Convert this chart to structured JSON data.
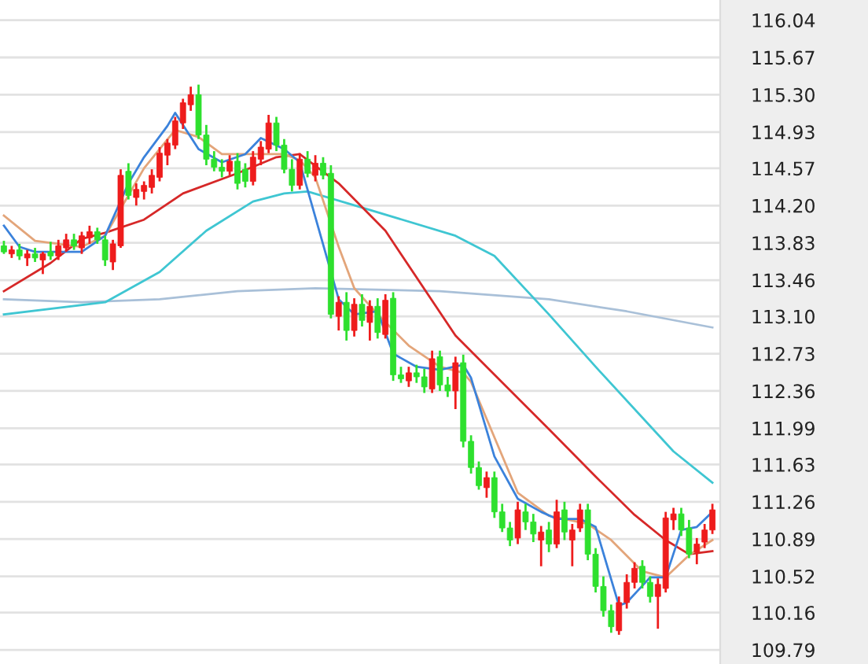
{
  "chart_data": {
    "type": "candlestick",
    "categories": [
      null,
      null,
      null,
      null,
      null,
      null,
      null,
      null,
      null,
      null,
      null,
      null,
      null,
      null,
      null,
      null,
      null,
      null,
      null,
      null,
      null,
      null,
      null,
      null,
      null,
      null,
      null,
      null,
      null,
      null,
      null,
      null,
      null,
      null,
      null,
      null,
      null,
      null,
      null,
      null,
      null,
      null,
      null,
      null,
      null,
      null,
      null,
      null,
      null,
      null,
      null,
      null,
      null,
      null,
      null,
      null,
      null,
      null,
      null,
      null,
      null,
      null,
      null,
      null,
      null,
      null,
      null,
      null,
      null,
      null,
      null,
      null,
      null,
      null,
      null,
      null,
      null,
      null,
      null,
      null,
      null,
      null,
      null,
      null,
      null,
      null,
      null,
      null,
      null,
      null,
      null,
      null
    ],
    "ohlc": [
      [
        113.8,
        113.85,
        113.72,
        113.74
      ],
      [
        113.72,
        113.8,
        113.68,
        113.76
      ],
      [
        113.76,
        113.82,
        113.66,
        113.7
      ],
      [
        113.68,
        113.76,
        113.6,
        113.72
      ],
      [
        113.72,
        113.78,
        113.64,
        113.68
      ],
      [
        113.66,
        113.74,
        113.52,
        113.72
      ],
      [
        113.74,
        113.84,
        113.66,
        113.7
      ],
      [
        113.7,
        113.86,
        113.66,
        113.8
      ],
      [
        113.78,
        113.92,
        113.74,
        113.86
      ],
      [
        113.86,
        113.92,
        113.76,
        113.8
      ],
      [
        113.78,
        113.94,
        113.72,
        113.9
      ],
      [
        113.88,
        114.0,
        113.82,
        113.94
      ],
      [
        113.94,
        113.98,
        113.82,
        113.86
      ],
      [
        113.86,
        113.9,
        113.6,
        113.66
      ],
      [
        113.64,
        113.86,
        113.56,
        113.82
      ],
      [
        113.8,
        114.56,
        113.78,
        114.5
      ],
      [
        114.54,
        114.62,
        114.26,
        114.3
      ],
      [
        114.28,
        114.42,
        114.2,
        114.36
      ],
      [
        114.34,
        114.44,
        114.26,
        114.4
      ],
      [
        114.38,
        114.56,
        114.32,
        114.5
      ],
      [
        114.48,
        114.78,
        114.44,
        114.72
      ],
      [
        114.7,
        114.86,
        114.6,
        114.82
      ],
      [
        114.8,
        115.08,
        114.76,
        115.04
      ],
      [
        115.02,
        115.26,
        114.96,
        115.22
      ],
      [
        115.2,
        115.38,
        115.14,
        115.3
      ],
      [
        115.3,
        115.4,
        114.86,
        114.9
      ],
      [
        114.9,
        115.0,
        114.6,
        114.66
      ],
      [
        114.66,
        114.74,
        114.54,
        114.58
      ],
      [
        114.58,
        114.66,
        114.48,
        114.54
      ],
      [
        114.54,
        114.7,
        114.5,
        114.64
      ],
      [
        114.64,
        114.72,
        114.36,
        114.42
      ],
      [
        114.56,
        114.62,
        114.38,
        114.44
      ],
      [
        114.44,
        114.74,
        114.4,
        114.68
      ],
      [
        114.66,
        114.84,
        114.6,
        114.78
      ],
      [
        114.76,
        115.1,
        114.72,
        115.02
      ],
      [
        115.02,
        115.08,
        114.74,
        114.8
      ],
      [
        114.8,
        114.86,
        114.52,
        114.56
      ],
      [
        114.56,
        114.66,
        114.34,
        114.4
      ],
      [
        114.4,
        114.72,
        114.36,
        114.66
      ],
      [
        114.66,
        114.74,
        114.48,
        114.52
      ],
      [
        114.5,
        114.7,
        114.44,
        114.62
      ],
      [
        114.62,
        114.68,
        114.46,
        114.5
      ],
      [
        114.52,
        114.6,
        113.08,
        113.12
      ],
      [
        113.1,
        113.3,
        112.96,
        113.24
      ],
      [
        113.24,
        113.34,
        112.86,
        112.96
      ],
      [
        112.96,
        113.28,
        112.9,
        113.22
      ],
      [
        113.22,
        113.32,
        113.0,
        113.06
      ],
      [
        113.04,
        113.26,
        112.86,
        113.2
      ],
      [
        113.2,
        113.28,
        112.88,
        112.94
      ],
      [
        112.92,
        113.32,
        112.88,
        113.26
      ],
      [
        113.28,
        113.34,
        112.46,
        112.52
      ],
      [
        112.52,
        112.6,
        112.44,
        112.48
      ],
      [
        112.46,
        112.6,
        112.4,
        112.54
      ],
      [
        112.54,
        112.62,
        112.44,
        112.5
      ],
      [
        112.5,
        112.58,
        112.34,
        112.4
      ],
      [
        112.38,
        112.76,
        112.34,
        112.68
      ],
      [
        112.7,
        112.76,
        112.36,
        112.42
      ],
      [
        112.42,
        112.5,
        112.3,
        112.36
      ],
      [
        112.36,
        112.7,
        112.18,
        112.64
      ],
      [
        112.64,
        112.72,
        111.8,
        111.86
      ],
      [
        111.86,
        111.92,
        111.54,
        111.6
      ],
      [
        111.6,
        111.66,
        111.38,
        111.42
      ],
      [
        111.4,
        111.56,
        111.3,
        111.5
      ],
      [
        111.5,
        111.56,
        111.1,
        111.16
      ],
      [
        111.16,
        111.24,
        110.96,
        111.0
      ],
      [
        111.0,
        111.06,
        110.82,
        110.88
      ],
      [
        110.9,
        111.26,
        110.84,
        111.18
      ],
      [
        111.16,
        111.24,
        110.98,
        111.06
      ],
      [
        111.06,
        111.14,
        110.86,
        110.94
      ],
      [
        110.88,
        111.02,
        110.62,
        110.96
      ],
      [
        110.98,
        111.06,
        110.76,
        110.84
      ],
      [
        110.84,
        111.28,
        110.8,
        111.16
      ],
      [
        111.18,
        111.26,
        110.88,
        110.96
      ],
      [
        110.88,
        111.04,
        110.62,
        110.98
      ],
      [
        111.0,
        111.24,
        110.96,
        111.18
      ],
      [
        111.18,
        111.24,
        110.68,
        110.74
      ],
      [
        110.74,
        110.8,
        110.36,
        110.42
      ],
      [
        110.42,
        110.52,
        110.12,
        110.18
      ],
      [
        110.18,
        110.24,
        109.96,
        110.02
      ],
      [
        109.98,
        110.32,
        109.94,
        110.26
      ],
      [
        110.26,
        110.54,
        110.2,
        110.46
      ],
      [
        110.46,
        110.66,
        110.4,
        110.6
      ],
      [
        110.62,
        110.68,
        110.4,
        110.46
      ],
      [
        110.46,
        110.52,
        110.26,
        110.32
      ],
      [
        110.32,
        110.5,
        110.0,
        110.44
      ],
      [
        110.4,
        111.16,
        110.36,
        111.1
      ],
      [
        111.08,
        111.2,
        110.98,
        111.14
      ],
      [
        111.14,
        111.2,
        110.92,
        110.98
      ],
      [
        111.0,
        111.08,
        110.7,
        110.74
      ],
      [
        110.76,
        110.9,
        110.64,
        110.84
      ],
      [
        110.86,
        111.04,
        110.8,
        110.98
      ],
      [
        110.98,
        111.24,
        110.94,
        111.18
      ]
    ],
    "series": [
      {
        "type": "line",
        "color": "#a9c0d8",
        "values": [
          113.27,
          null,
          null,
          null,
          null,
          null,
          null,
          null,
          null,
          null,
          113.24,
          null,
          null,
          null,
          null,
          null,
          null,
          null,
          null,
          null,
          113.27,
          null,
          null,
          null,
          null,
          null,
          null,
          null,
          null,
          null,
          113.35,
          null,
          null,
          null,
          null,
          null,
          null,
          null,
          null,
          null,
          113.38,
          null,
          null,
          null,
          null,
          null,
          null,
          null,
          null,
          null,
          null,
          null,
          null,
          null,
          null,
          null,
          113.35,
          null,
          null,
          null,
          null,
          null,
          null,
          null,
          null,
          null,
          null,
          null,
          null,
          null,
          113.27,
          null,
          null,
          null,
          null,
          null,
          null,
          null,
          null,
          null,
          113.15,
          null,
          null,
          null,
          null,
          null,
          null,
          null,
          null,
          null,
          null,
          112.99
        ]
      },
      {
        "type": "line",
        "color": "#3fc6d2",
        "values": [
          113.12,
          null,
          null,
          null,
          null,
          null,
          null,
          null,
          null,
          null,
          null,
          null,
          null,
          113.24,
          null,
          null,
          null,
          null,
          null,
          null,
          113.54,
          null,
          null,
          null,
          null,
          null,
          113.95,
          null,
          null,
          null,
          null,
          null,
          114.24,
          null,
          null,
          null,
          114.32,
          null,
          null,
          114.34,
          null,
          null,
          null,
          null,
          null,
          null,
          114.18,
          null,
          null,
          null,
          null,
          null,
          null,
          null,
          null,
          null,
          null,
          null,
          113.9,
          null,
          null,
          null,
          null,
          113.7,
          null,
          null,
          null,
          null,
          null,
          null,
          113.12,
          null,
          null,
          null,
          null,
          null,
          112.6,
          null,
          null,
          null,
          null,
          null,
          null,
          null,
          null,
          null,
          111.76,
          null,
          null,
          null,
          null,
          111.45
        ]
      },
      {
        "type": "line",
        "color": "#d62828",
        "values": [
          113.35,
          null,
          null,
          null,
          null,
          null,
          113.63,
          null,
          null,
          null,
          113.87,
          null,
          null,
          113.93,
          null,
          null,
          null,
          null,
          114.06,
          null,
          null,
          null,
          null,
          114.32,
          null,
          null,
          null,
          null,
          null,
          null,
          114.52,
          null,
          null,
          null,
          null,
          114.68,
          null,
          null,
          114.71,
          null,
          null,
          null,
          null,
          114.42,
          null,
          null,
          null,
          null,
          null,
          113.95,
          null,
          null,
          null,
          null,
          null,
          null,
          null,
          null,
          112.91,
          null,
          null,
          null,
          112.6,
          null,
          null,
          null,
          null,
          null,
          null,
          null,
          111.98,
          null,
          null,
          null,
          null,
          null,
          111.51,
          null,
          null,
          null,
          null,
          111.13,
          null,
          null,
          null,
          110.88,
          null,
          null,
          110.74,
          null,
          null,
          110.77
        ]
      },
      {
        "type": "line",
        "color": "#e3a57a",
        "values": [
          114.1,
          null,
          null,
          null,
          113.85,
          null,
          null,
          null,
          null,
          null,
          113.79,
          null,
          null,
          113.9,
          null,
          null,
          null,
          null,
          114.57,
          null,
          null,
          null,
          114.95,
          null,
          null,
          114.88,
          null,
          null,
          114.71,
          null,
          null,
          null,
          114.71,
          null,
          null,
          null,
          114.71,
          null,
          114.65,
          null,
          114.48,
          null,
          null,
          113.79,
          null,
          113.38,
          null,
          null,
          113.12,
          null,
          null,
          null,
          112.81,
          null,
          null,
          null,
          112.6,
          null,
          null,
          112.54,
          112.45,
          null,
          null,
          null,
          null,
          null,
          111.35,
          null,
          null,
          null,
          111.12,
          null,
          null,
          null,
          null,
          111.04,
          null,
          null,
          110.88,
          null,
          null,
          null,
          110.57,
          null,
          null,
          110.51,
          null,
          null,
          110.73,
          null,
          null,
          110.88
        ]
      },
      {
        "type": "line",
        "color": "#3b82db",
        "values": [
          114.0,
          null,
          113.79,
          null,
          113.74,
          null,
          null,
          null,
          null,
          null,
          113.74,
          null,
          null,
          113.9,
          null,
          null,
          114.42,
          null,
          114.68,
          null,
          null,
          114.99,
          115.12,
          null,
          null,
          114.76,
          null,
          null,
          114.63,
          null,
          null,
          114.71,
          null,
          114.87,
          null,
          null,
          114.76,
          null,
          114.63,
          null,
          null,
          null,
          null,
          113.27,
          null,
          113.12,
          null,
          null,
          113.15,
          null,
          112.73,
          null,
          null,
          112.6,
          null,
          null,
          112.57,
          null,
          null,
          112.62,
          112.49,
          null,
          null,
          111.71,
          null,
          null,
          111.29,
          null,
          null,
          111.16,
          null,
          111.09,
          null,
          null,
          111.09,
          null,
          111.01,
          null,
          null,
          110.23,
          110.26,
          null,
          null,
          110.51,
          null,
          110.51,
          null,
          110.98,
          null,
          111.01,
          null,
          111.16
        ]
      }
    ],
    "ylim": [
      109.65,
      116.24
    ],
    "yticks": [
      {
        "value": 116.04,
        "label": "116.04"
      },
      {
        "value": 115.67,
        "label": "115.67"
      },
      {
        "value": 115.3,
        "label": "115.30"
      },
      {
        "value": 114.93,
        "label": "114.93"
      },
      {
        "value": 114.57,
        "label": "114.57"
      },
      {
        "value": 114.2,
        "label": "114.20"
      },
      {
        "value": 113.83,
        "label": "113.83"
      },
      {
        "value": 113.46,
        "label": "113.46"
      },
      {
        "value": 113.1,
        "label": "113.10"
      },
      {
        "value": 112.73,
        "label": "112.73"
      },
      {
        "value": 112.36,
        "label": "112.36"
      },
      {
        "value": 111.99,
        "label": "111.99"
      },
      {
        "value": 111.63,
        "label": "111.63"
      },
      {
        "value": 111.26,
        "label": "111.26"
      },
      {
        "value": 110.89,
        "label": "110.89"
      },
      {
        "value": 110.52,
        "label": "110.52"
      },
      {
        "value": 110.16,
        "label": "110.16"
      },
      {
        "value": 109.79,
        "label": "109.79"
      }
    ],
    "grid": "y",
    "tick_labels": "y",
    "legend": false
  }
}
